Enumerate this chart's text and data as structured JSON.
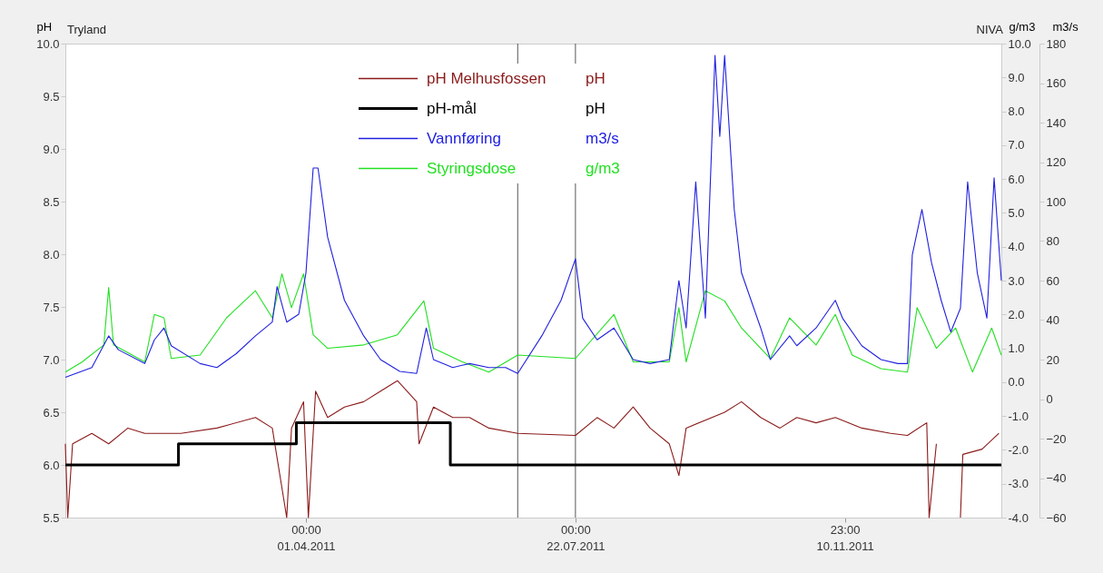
{
  "chart_data": {
    "type": "line",
    "title": "Tryland",
    "ylabel": "pH",
    "y2label": "g/m3",
    "y3label": "m3/s",
    "annotations": [
      "pH",
      "pH",
      "m3/s",
      "g/m3",
      "NIVA"
    ],
    "xlim": [
      "2010-12-22",
      "2012-01-15"
    ],
    "xticks": [
      {
        "value": "2011-04-01T00:00",
        "label": "00:00\n01.04.2011"
      },
      {
        "value": "2011-07-22T00:00",
        "label": "00:00\n22.07.2011"
      },
      {
        "value": "2011-11-10T23:00",
        "label": "23:00\n10.11.2011"
      }
    ],
    "ylim": [
      5.5,
      10.0
    ],
    "yticks": [
      5.5,
      {
        "value": 6,
        "label": "6.0"
      },
      6.5,
      {
        "value": 7,
        "label": "7.0"
      },
      7.5,
      {
        "value": 8,
        "label": "8.0"
      },
      8.5,
      {
        "value": 9,
        "label": "9.0"
      },
      9.5,
      {
        "value": 10,
        "label": "10.0"
      }
    ],
    "y2lim": [
      -4.0,
      10.0
    ],
    "y2ticks": [
      {
        "value": -4,
        "label": "-4.0"
      },
      {
        "value": -3,
        "label": "-3.0"
      },
      {
        "value": -2,
        "label": "-2.0"
      },
      {
        "value": -1,
        "label": "-1.0"
      },
      {
        "value": 0,
        "label": "0.0"
      },
      {
        "value": 1,
        "label": "1.0"
      },
      {
        "value": 2,
        "label": "2.0"
      },
      {
        "value": 3,
        "label": "3.0"
      },
      {
        "value": 4,
        "label": "4.0"
      },
      {
        "value": 5,
        "label": "5.0"
      },
      {
        "value": 6,
        "label": "6.0"
      },
      {
        "value": 7,
        "label": "7.0"
      },
      {
        "value": 8,
        "label": "8.0"
      },
      {
        "value": 9,
        "label": "9.0"
      },
      {
        "value": 10,
        "label": "10.0"
      }
    ],
    "y3lim": [
      -60,
      180
    ],
    "y3ticks": [
      -60,
      -40,
      -20,
      0,
      20,
      40,
      60,
      80,
      100,
      120,
      140,
      160,
      180
    ],
    "legend": "top",
    "ref_lines": [
      {
        "axis": "x",
        "value": "2011-06-28",
        "label": null,
        "color": "#555555"
      },
      {
        "axis": "x",
        "value": "2011-07-22",
        "label": null,
        "color": "#555555"
      }
    ],
    "series": [
      {
        "name": "pH Melhusfossen",
        "color": "#8b1a1a",
        "x": [
          "2010-12-22",
          "2010-12-23",
          "2010-12-25",
          "2011-01-02",
          "2011-01-09",
          "2011-01-17",
          "2011-01-24",
          "2011-02-08",
          "2011-02-23",
          "2011-03-11",
          "2011-03-18",
          "2011-03-24",
          "2011-03-26",
          "2011-03-31",
          "2011-04-02",
          "2011-04-05",
          "2011-04-10",
          "2011-04-17",
          "2011-04-25",
          "2011-05-02",
          "2011-05-09",
          "2011-05-17",
          "2011-05-18",
          "2011-05-24",
          "2011-06-01",
          "2011-06-08",
          "2011-06-16",
          "2011-06-28",
          "2011-07-22",
          "2011-07-31",
          "2011-08-07",
          "2011-08-15",
          "2011-08-22",
          "2011-08-30",
          "2011-09-03",
          "2011-09-06",
          "2011-09-22",
          "2011-09-29",
          "2011-10-07",
          "2011-10-15",
          "2011-10-22",
          "2011-10-30",
          "2011-11-07",
          "2011-11-18",
          "2011-11-30",
          "2011-12-07",
          "2011-12-15",
          "2011-12-16",
          "2011-12-19",
          "2011-12-27",
          "2011-12-29",
          "2011-12-30",
          "2012-01-07",
          "2012-01-14"
        ],
        "values": [
          6.2,
          5.5,
          6.2,
          6.3,
          6.2,
          6.35,
          6.3,
          6.3,
          6.35,
          6.45,
          6.35,
          5.5,
          6.35,
          6.6,
          5.5,
          6.7,
          6.45,
          6.55,
          6.6,
          6.7,
          6.8,
          6.6,
          6.2,
          6.55,
          6.45,
          6.45,
          6.35,
          6.3,
          6.28,
          6.45,
          6.35,
          6.55,
          6.35,
          6.2,
          5.9,
          6.35,
          6.5,
          6.6,
          6.45,
          6.35,
          6.45,
          6.4,
          6.45,
          6.35,
          6.3,
          6.28,
          6.4,
          5.5,
          6.2,
          null,
          5.5,
          6.1,
          6.15,
          6.3
        ]
      },
      {
        "name": "pH-mål",
        "type": "step",
        "color": "#000000",
        "x": [
          "2010-12-22",
          "2011-02-07",
          "2011-03-28",
          "2011-05-31",
          "2012-01-15"
        ],
        "values": [
          6.0,
          6.2,
          6.4,
          6.0,
          6.0
        ]
      },
      {
        "name": "Vannføring",
        "axis": "y3",
        "color": "#2020e0",
        "x": [
          "2010-12-22",
          "2011-01-02",
          "2011-01-09",
          "2011-01-13",
          "2011-01-24",
          "2011-01-28",
          "2011-02-01",
          "2011-02-04",
          "2011-02-16",
          "2011-02-23",
          "2011-03-03",
          "2011-03-11",
          "2011-03-18",
          "2011-03-20",
          "2011-03-24",
          "2011-03-29",
          "2011-04-01",
          "2011-04-04",
          "2011-04-06",
          "2011-04-10",
          "2011-04-17",
          "2011-04-25",
          "2011-05-02",
          "2011-05-10",
          "2011-05-17",
          "2011-05-21",
          "2011-05-24",
          "2011-06-01",
          "2011-06-08",
          "2011-06-16",
          "2011-06-23",
          "2011-06-28",
          "2011-07-08",
          "2011-07-16",
          "2011-07-22",
          "2011-07-25",
          "2011-07-31",
          "2011-08-07",
          "2011-08-15",
          "2011-08-22",
          "2011-08-30",
          "2011-09-03",
          "2011-09-06",
          "2011-09-10",
          "2011-09-14",
          "2011-09-18",
          "2011-09-20",
          "2011-09-22",
          "2011-09-26",
          "2011-09-29",
          "2011-10-07",
          "2011-10-11",
          "2011-10-19",
          "2011-10-22",
          "2011-10-30",
          "2011-11-07",
          "2011-11-10",
          "2011-11-18",
          "2011-11-26",
          "2011-12-03",
          "2011-12-07",
          "2011-12-09",
          "2011-12-13",
          "2011-12-17",
          "2011-12-21",
          "2011-12-25",
          "2011-12-29",
          "2012-01-01",
          "2012-01-05",
          "2012-01-09",
          "2012-01-12",
          "2012-01-15"
        ],
        "values": [
          11,
          16,
          32,
          25,
          18,
          30,
          36,
          27,
          18,
          16,
          23,
          32,
          39,
          57,
          39,
          43,
          64,
          117,
          117,
          82,
          50,
          32,
          20,
          14,
          13,
          36,
          20,
          16,
          18,
          16,
          16,
          13,
          32,
          50,
          71,
          41,
          30,
          36,
          20,
          18,
          20,
          60,
          36,
          110,
          41,
          174,
          133,
          174,
          96,
          64,
          36,
          20,
          32,
          27,
          36,
          50,
          41,
          27,
          20,
          18,
          18,
          73,
          96,
          69,
          50,
          34,
          46,
          110,
          64,
          41,
          112,
          60
        ]
      },
      {
        "name": "Styringsdose",
        "axis": "y2",
        "color": "#22e022",
        "x": [
          "2010-12-22",
          "2010-12-29",
          "2011-01-07",
          "2011-01-09",
          "2011-01-11",
          "2011-01-24",
          "2011-01-28",
          "2011-02-01",
          "2011-02-04",
          "2011-02-16",
          "2011-02-27",
          "2011-03-11",
          "2011-03-18",
          "2011-03-22",
          "2011-03-26",
          "2011-03-31",
          "2011-04-04",
          "2011-04-10",
          "2011-04-25",
          "2011-05-09",
          "2011-05-20",
          "2011-05-24",
          "2011-06-05",
          "2011-06-16",
          "2011-06-28",
          "2011-07-22",
          "2011-08-07",
          "2011-08-15",
          "2011-08-30",
          "2011-09-03",
          "2011-09-06",
          "2011-09-14",
          "2011-09-22",
          "2011-09-29",
          "2011-10-11",
          "2011-10-19",
          "2011-10-30",
          "2011-11-07",
          "2011-11-14",
          "2011-11-26",
          "2011-12-07",
          "2011-12-11",
          "2011-12-19",
          "2011-12-27",
          "2012-01-03",
          "2012-01-11",
          "2012-01-15"
        ],
        "values": [
          0.3,
          0.6,
          1.1,
          2.8,
          1.1,
          0.6,
          2.0,
          1.9,
          0.7,
          0.8,
          1.9,
          2.7,
          1.9,
          3.2,
          2.2,
          3.2,
          1.4,
          1.0,
          1.1,
          1.4,
          2.4,
          1.0,
          0.6,
          0.3,
          0.8,
          0.7,
          2.0,
          0.6,
          0.6,
          2.2,
          0.6,
          2.7,
          2.4,
          1.6,
          0.7,
          1.9,
          1.1,
          2.0,
          0.8,
          0.4,
          0.3,
          2.2,
          1.0,
          1.6,
          0.3,
          1.6,
          0.8
        ]
      }
    ]
  }
}
